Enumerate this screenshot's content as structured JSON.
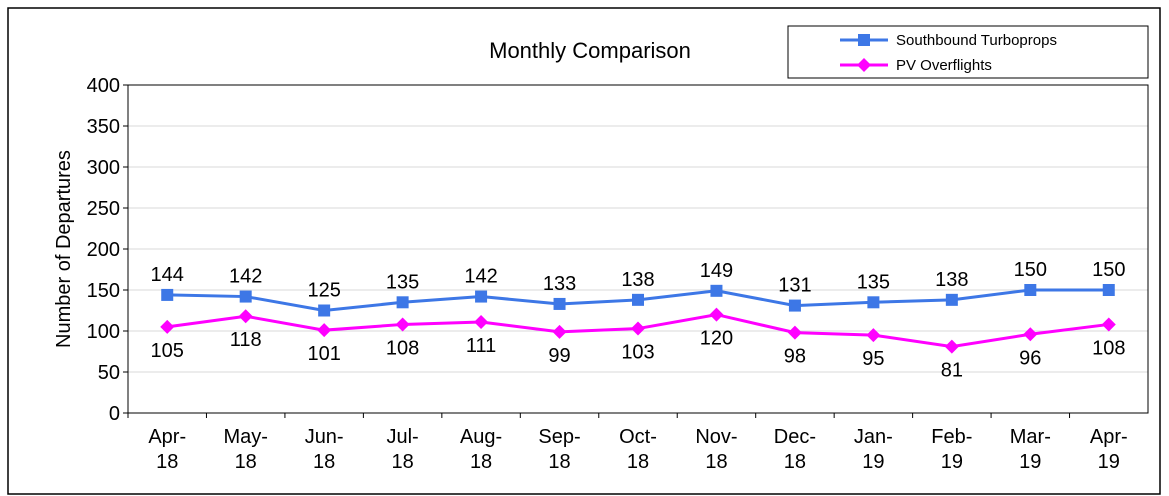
{
  "chart_data": {
    "type": "line",
    "title": "Monthly Comparison",
    "y_label": "Number of Departures",
    "categories": [
      "Apr-18",
      "May-18",
      "Jun-18",
      "Jul-18",
      "Aug-18",
      "Sep-18",
      "Oct-18",
      "Nov-18",
      "Dec-18",
      "Jan-19",
      "Feb-19",
      "Mar-19",
      "Apr-19"
    ],
    "series": [
      {
        "name": "Southbound Turboprops",
        "color": "#3d77e6",
        "marker": "square",
        "values": [
          144,
          142,
          125,
          135,
          142,
          133,
          138,
          149,
          131,
          135,
          138,
          150,
          150
        ]
      },
      {
        "name": "PV Overflights",
        "color": "#ff00ff",
        "marker": "diamond",
        "values": [
          105,
          118,
          101,
          108,
          111,
          99,
          103,
          120,
          98,
          95,
          81,
          96,
          108
        ]
      }
    ],
    "ylim": [
      0,
      400
    ],
    "yticks": [
      0,
      50,
      100,
      150,
      200,
      250,
      300,
      350,
      400
    ],
    "grid": true,
    "legend": "top-right"
  }
}
